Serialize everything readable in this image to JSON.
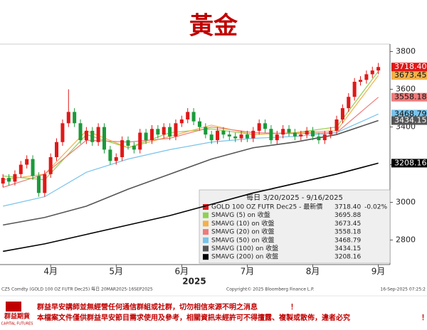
{
  "chart_data": {
    "type": "candlestick",
    "title": "黃金",
    "instrument": "GOLD 100 OZ FUTR Dec25 - 最新價",
    "last_label": "3718.40",
    "change": "-0.02%",
    "period": "每日 3/20/2025 - 9/16/2025",
    "year_label": "2025",
    "up_color": "#e01818",
    "down_color": "#1a9a3a",
    "xlim": [
      -0.5,
      64
    ],
    "xticks": [
      {
        "value": 8,
        "label": "4月"
      },
      {
        "value": 19,
        "label": "5月"
      },
      {
        "value": 30,
        "label": "6月"
      },
      {
        "value": 41,
        "label": "7月"
      },
      {
        "value": 52,
        "label": "8月"
      },
      {
        "value": 63,
        "label": "9月"
      }
    ],
    "ylim": [
      2670,
      3840
    ],
    "yticks": [
      2800,
      3000,
      3200,
      3400,
      3600,
      3800
    ],
    "open": [
      3100,
      3130,
      3110,
      3150,
      3200,
      3230,
      3140,
      3050,
      3150,
      3240,
      3320,
      3420,
      3480,
      3420,
      3330,
      3380,
      3320,
      3400,
      3280,
      3220,
      3240,
      3330,
      3300,
      3280,
      3370,
      3330,
      3390,
      3360,
      3400,
      3350,
      3420,
      3440,
      3480,
      3430,
      3400,
      3360,
      3330,
      3380,
      3360,
      3350,
      3340,
      3360,
      3340,
      3380,
      3420,
      3390,
      3330,
      3360,
      3390,
      3370,
      3350,
      3360,
      3380,
      3350,
      3330,
      3360,
      3380,
      3440,
      3500,
      3560,
      3640,
      3650,
      3680,
      3700
    ],
    "high": [
      3150,
      3150,
      3170,
      3220,
      3250,
      3250,
      3160,
      3170,
      3260,
      3340,
      3440,
      3600,
      3500,
      3440,
      3400,
      3400,
      3420,
      3420,
      3300,
      3260,
      3350,
      3350,
      3320,
      3390,
      3390,
      3410,
      3410,
      3420,
      3420,
      3440,
      3460,
      3500,
      3500,
      3450,
      3420,
      3380,
      3400,
      3400,
      3380,
      3370,
      3380,
      3380,
      3400,
      3440,
      3440,
      3410,
      3380,
      3410,
      3410,
      3390,
      3380,
      3400,
      3400,
      3370,
      3380,
      3400,
      3460,
      3520,
      3580,
      3660,
      3670,
      3700,
      3720,
      3740
    ],
    "low": [
      3080,
      3090,
      3090,
      3130,
      3180,
      3120,
      3030,
      3030,
      3130,
      3220,
      3300,
      3400,
      3400,
      3310,
      3310,
      3300,
      3300,
      3260,
      3200,
      3200,
      3220,
      3280,
      3260,
      3260,
      3310,
      3310,
      3340,
      3340,
      3330,
      3330,
      3400,
      3420,
      3410,
      3380,
      3340,
      3310,
      3310,
      3340,
      3330,
      3320,
      3320,
      3320,
      3320,
      3360,
      3370,
      3310,
      3310,
      3340,
      3350,
      3330,
      3330,
      3340,
      3330,
      3310,
      3310,
      3340,
      3360,
      3420,
      3480,
      3540,
      3620,
      3630,
      3660,
      3680
    ],
    "close": [
      3130,
      3110,
      3150,
      3200,
      3230,
      3140,
      3050,
      3150,
      3240,
      3320,
      3420,
      3480,
      3420,
      3330,
      3380,
      3320,
      3400,
      3280,
      3220,
      3240,
      3330,
      3300,
      3280,
      3370,
      3330,
      3390,
      3360,
      3400,
      3350,
      3420,
      3440,
      3480,
      3430,
      3400,
      3360,
      3330,
      3380,
      3360,
      3350,
      3340,
      3360,
      3340,
      3380,
      3420,
      3390,
      3330,
      3360,
      3390,
      3370,
      3350,
      3360,
      3380,
      3350,
      3330,
      3360,
      3380,
      3440,
      3500,
      3560,
      3640,
      3650,
      3680,
      3700,
      3718.4
    ],
    "ma_x": [
      0,
      7,
      14,
      21,
      28,
      35,
      42,
      49,
      56,
      63
    ],
    "series": [
      {
        "name": "SMAVG (5)  on 收盤",
        "color": "#8fd14f",
        "values": [
          3140,
          3120,
          3360,
          3290,
          3370,
          3390,
          3360,
          3370,
          3400,
          3695.88
        ]
      },
      {
        "name": "SMAVG (10)  on 收盤",
        "color": "#f3b04a",
        "values": [
          3120,
          3150,
          3380,
          3290,
          3350,
          3410,
          3360,
          3370,
          3380,
          3673.45
        ]
      },
      {
        "name": "SMAVG (20)  on 收盤",
        "color": "#ee7b7b",
        "values": [
          3080,
          3150,
          3330,
          3320,
          3340,
          3400,
          3370,
          3365,
          3370,
          3558.18
        ]
      },
      {
        "name": "SMAVG (50)  on 收盤",
        "color": "#79c3ea",
        "values": [
          2980,
          3030,
          3160,
          3230,
          3280,
          3320,
          3340,
          3350,
          3370,
          3468.79
        ]
      },
      {
        "name": "SMAVG (100)  on 收盤",
        "color": "#555555",
        "values": [
          2880,
          2920,
          2980,
          3070,
          3150,
          3230,
          3290,
          3320,
          3360,
          3434.15
        ]
      },
      {
        "name": "SMAVG (200)  on 收盤",
        "color": "#000000",
        "values": [
          2740,
          2780,
          2830,
          2880,
          2930,
          2990,
          3050,
          3100,
          3150,
          3208.16
        ]
      }
    ]
  },
  "footer": {
    "source": "CZ5 Comdty (GOLD 100 OZ FUTR  Dec25) 每日 20MAR2025-16SEP2025",
    "copyright": "Copyright© 2025 Bloomberg Finance L.P.",
    "timestamp": "16-Sep-2025 07:25:2",
    "notice1": "群益早安講師並無經營任何通信群組或社群，切勿相信來源不明之消息",
    "notice2": "本檔案文件僅供群益早安節目需求使用及參考，相關資訊未經許可不得擅露、複製或散佈，違者必究",
    "mark": "！",
    "logo": "群益期貨",
    "logo_en": "CAPITAL FUTURES"
  }
}
